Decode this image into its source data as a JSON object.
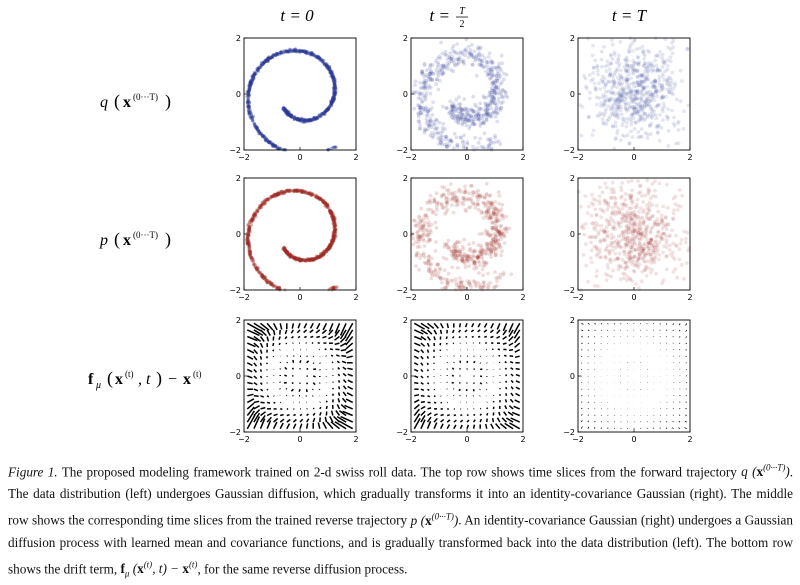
{
  "columns": [
    "t = 0",
    "t = T/2",
    "t = T"
  ],
  "rows": [
    "q (x^(0···T))",
    "p (x^(0···T))",
    "f_μ (x^(t), t) − x^(t)"
  ],
  "row_labels": {
    "row1": {
      "func": "q",
      "arg": "x",
      "sup": "(0···T)"
    },
    "row2": {
      "func": "p",
      "arg": "x",
      "sup": "(0···T)"
    },
    "row3": {
      "func": "f",
      "sub": "μ",
      "arg": "x",
      "sup": "(t)",
      "rest": ", t",
      "minus": "−",
      "arg2": "x",
      "sup2": "(t)"
    }
  },
  "axis_ticks": [
    "−2",
    "0",
    "2"
  ],
  "colors": {
    "q": "#2b3a96",
    "p": "#9e2a24",
    "arrow": "#000000"
  },
  "caption": {
    "label": "Figure 1.",
    "text1": "The proposed modeling framework trained on 2-d swiss roll data. The top row shows time slices from the forward trajectory",
    "text2": ". The data distribution (left) undergoes Gaussian diffusion, which gradually transforms it into an identity-covariance Gaussian (right). The middle row shows the corresponding time slices from the trained reverse trajectory",
    "text3": ". An identity-covariance Gaussian (right) undergoes a Gaussian diffusion process with learned mean and covariance functions, and is gradually transformed back into the data distribution (left). The bottom row shows the drift term,",
    "text4": ", for the same reverse diffusion process."
  }
}
